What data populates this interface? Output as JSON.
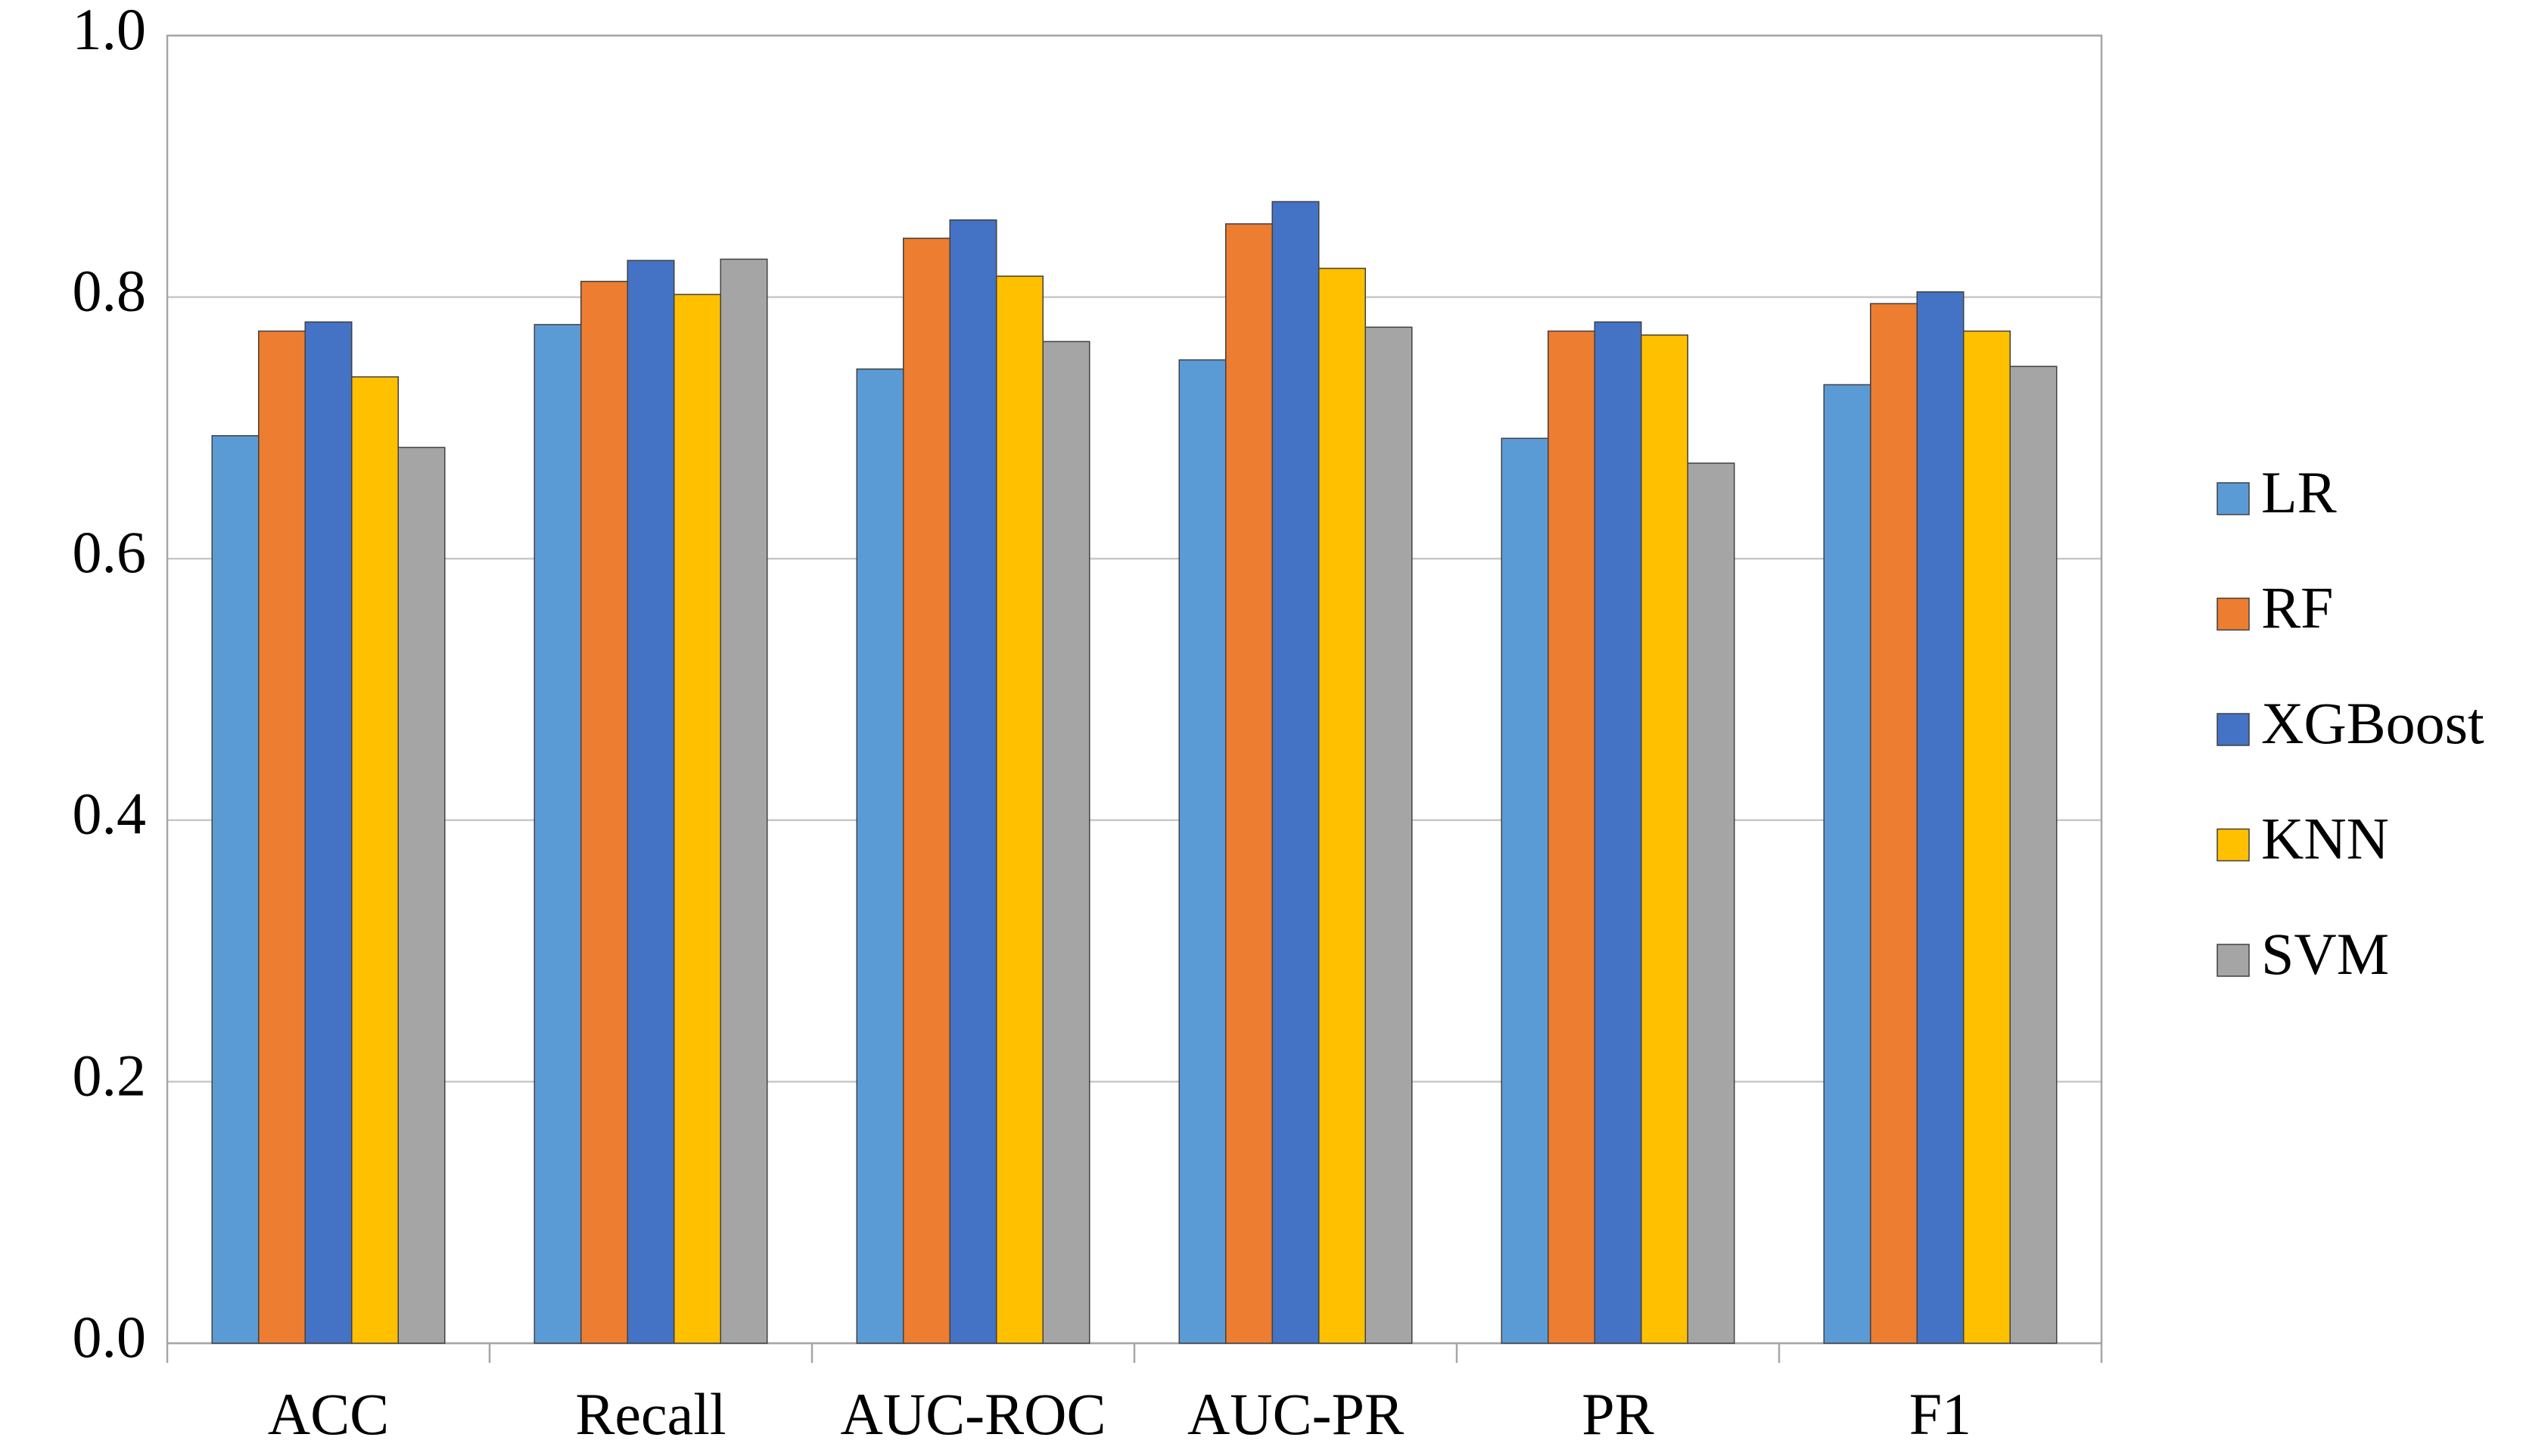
{
  "chart_data": {
    "type": "bar",
    "categories": [
      "ACC",
      "Recall",
      "AUC-ROC",
      "AUC-PR",
      "PR",
      "F1"
    ],
    "series": [
      {
        "name": "LR",
        "color": "#5b9bd5",
        "values": [
          0.694,
          0.779,
          0.745,
          0.752,
          0.692,
          0.733
        ]
      },
      {
        "name": "RF",
        "color": "#ed7d31",
        "values": [
          0.774,
          0.812,
          0.845,
          0.856,
          0.774,
          0.795
        ]
      },
      {
        "name": "XGBoost",
        "color": "#4472c4",
        "values": [
          0.781,
          0.828,
          0.859,
          0.873,
          0.781,
          0.804
        ]
      },
      {
        "name": "KNN",
        "color": "#ffc000",
        "values": [
          0.739,
          0.802,
          0.816,
          0.822,
          0.771,
          0.774
        ]
      },
      {
        "name": "SVM",
        "color": "#a5a5a5",
        "values": [
          0.685,
          0.829,
          0.766,
          0.777,
          0.673,
          0.747
        ]
      }
    ],
    "ylim": [
      0,
      1
    ],
    "yticks": [
      {
        "value": 0,
        "label": "0.0"
      },
      0.2,
      0.4,
      0.6,
      0.8,
      {
        "value": 1,
        "label": "1.0"
      }
    ],
    "grid": true,
    "legend": "right"
  }
}
